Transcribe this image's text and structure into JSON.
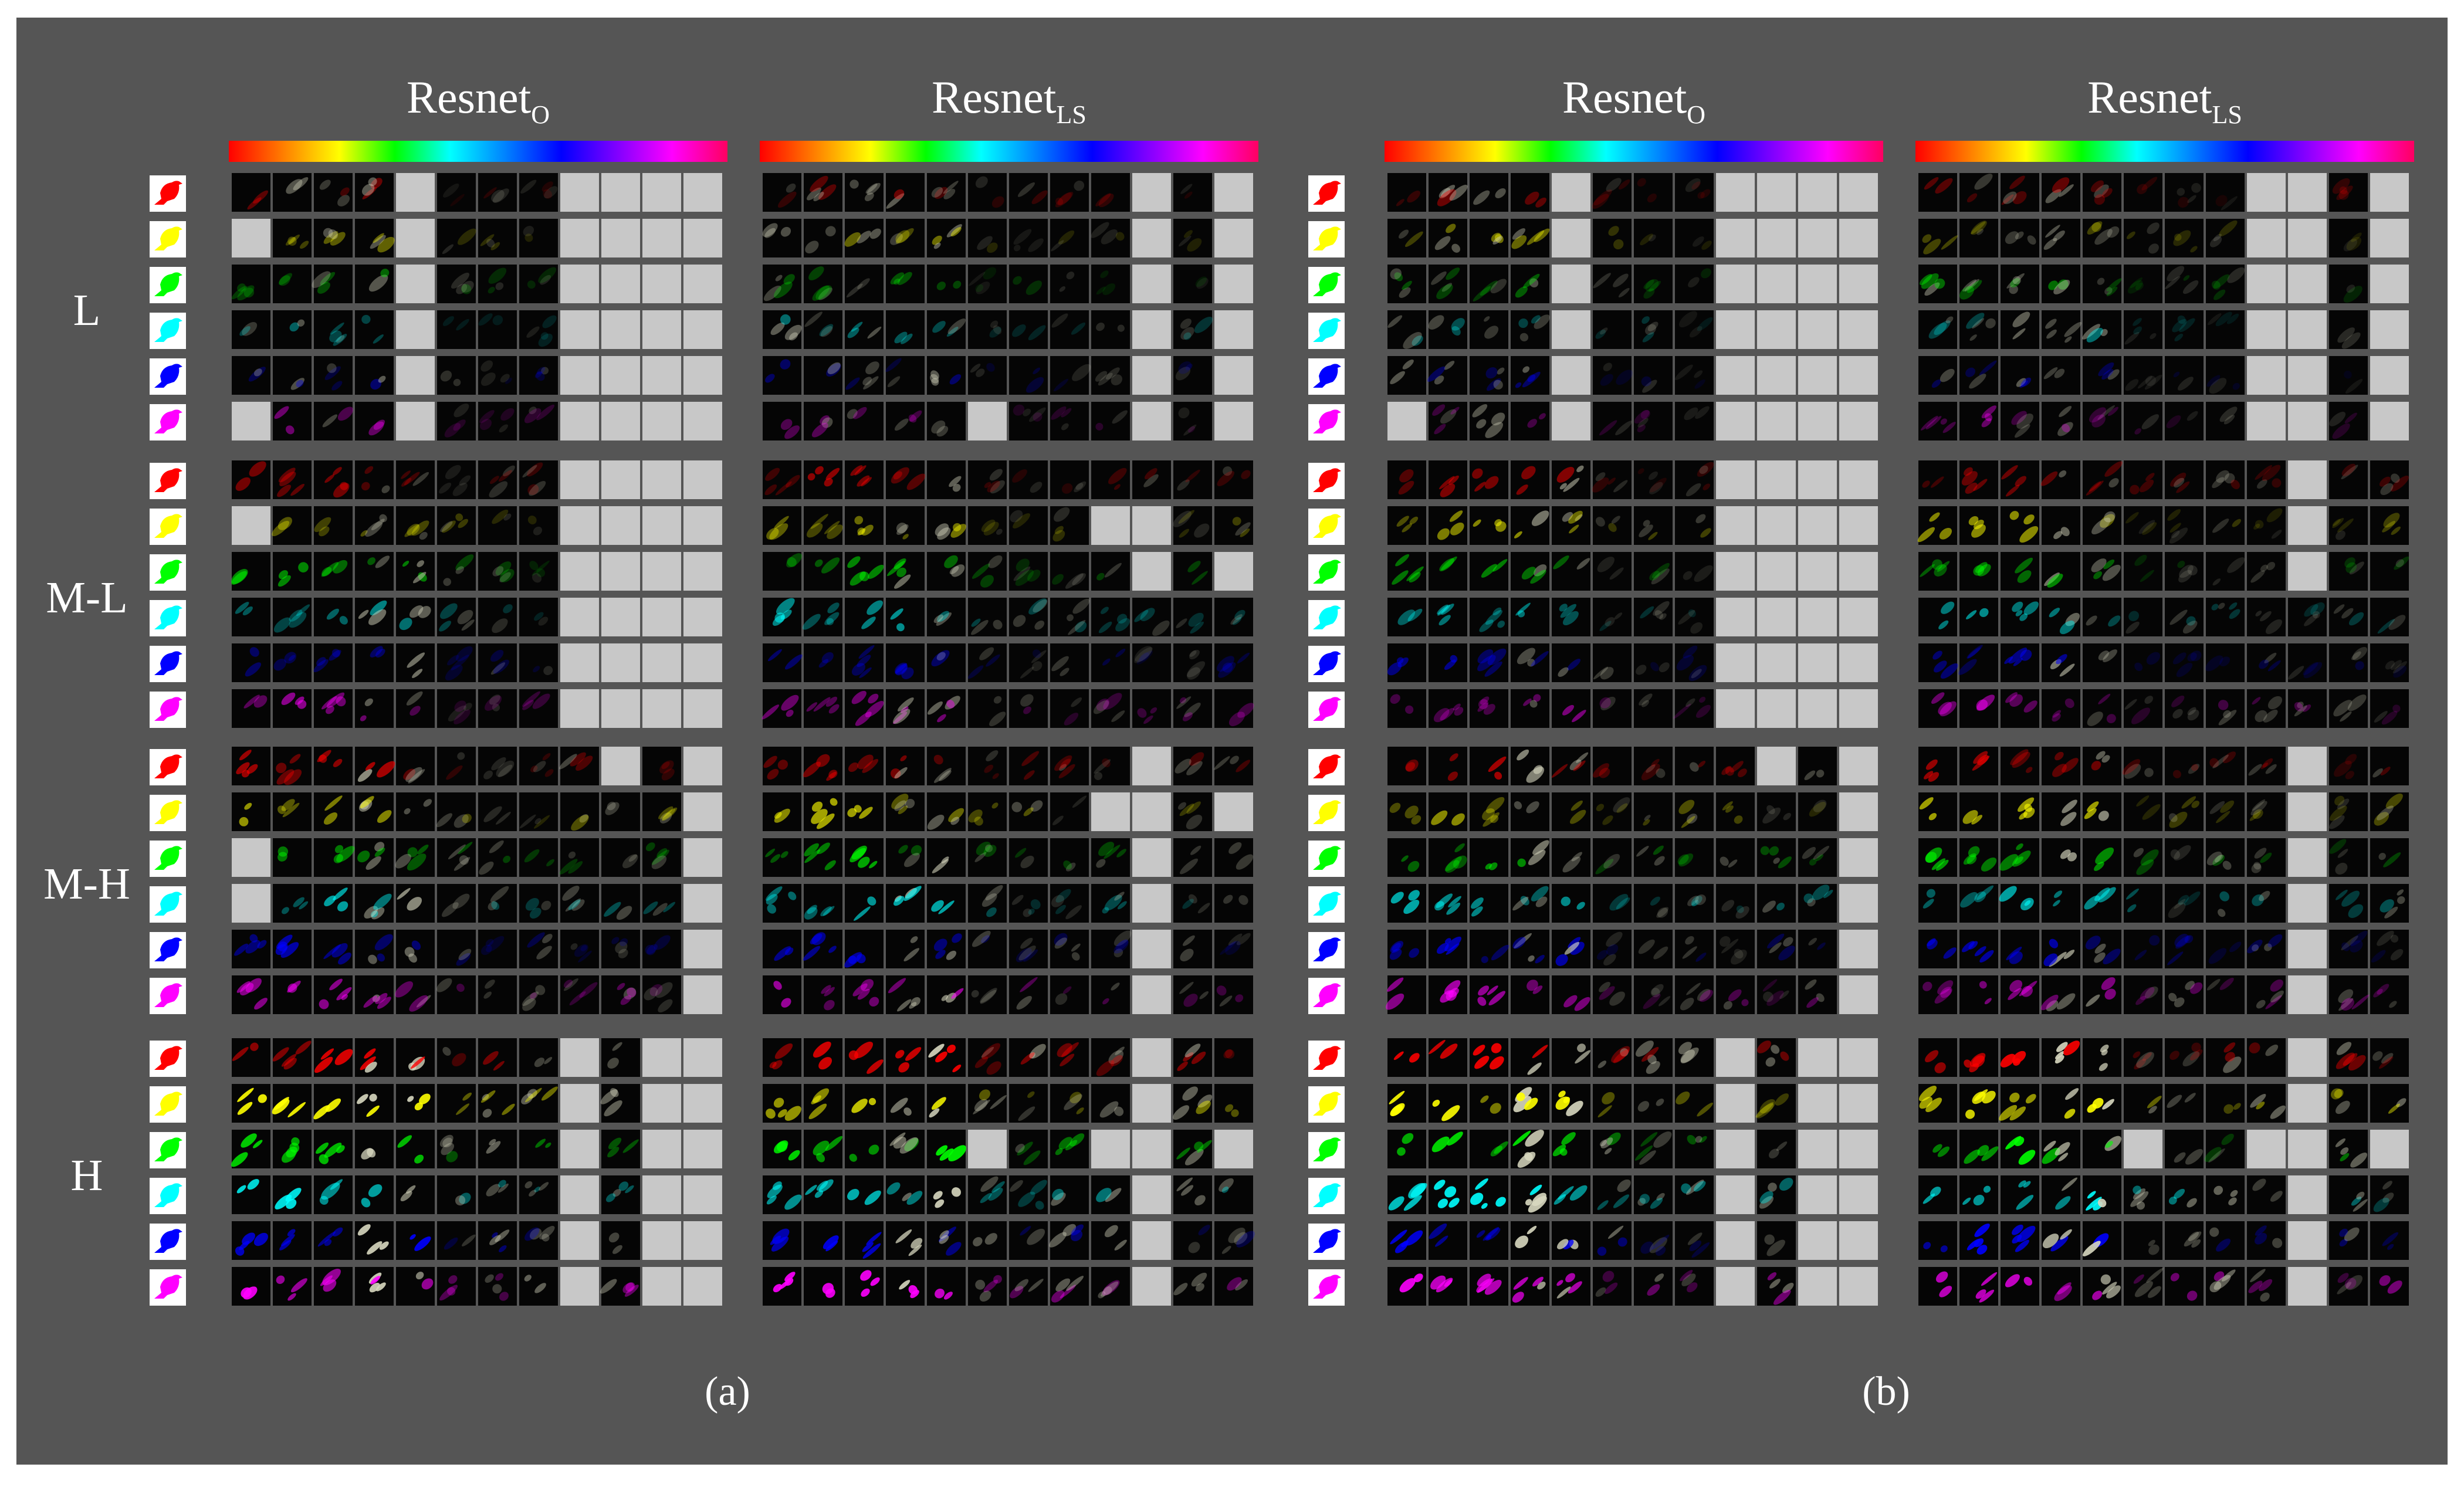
{
  "figure": {
    "background": "#555555",
    "border": "#ffffff"
  },
  "panels": [
    {
      "id": "a",
      "caption": "(a)",
      "models": [
        {
          "base": "Resnet",
          "sub": "O"
        },
        {
          "base": "Resnet",
          "sub": "LS"
        }
      ]
    },
    {
      "id": "b",
      "caption": "(b)",
      "models": [
        {
          "base": "Resnet",
          "sub": "O"
        },
        {
          "base": "Resnet",
          "sub": "LS"
        }
      ]
    }
  ],
  "groups": [
    "L",
    "M-L",
    "M-H",
    "H"
  ],
  "bird_colors": [
    "#ff0000",
    "#ffff00",
    "#00ff00",
    "#00ffff",
    "#0000ff",
    "#ff00ff"
  ],
  "bird_icon": "bird-silhouette-icon",
  "hue_bar_colors": [
    "#ff0000",
    "#ff8000",
    "#ffff00",
    "#00ff00",
    "#00ffff",
    "#0080ff",
    "#0000ff",
    "#8000ff",
    "#ff00ff",
    "#ff0060"
  ],
  "cells_per_row": 12,
  "inactive_cell_color": "#c8c8c8",
  "inactive_columns": {
    "a": {
      "Resnet_O": {
        "L": [
          [
            4,
            8,
            9,
            10,
            11
          ],
          [
            0,
            4,
            8,
            9,
            10,
            11
          ],
          [
            4,
            8,
            9,
            10,
            11
          ],
          [
            4,
            8,
            9,
            10,
            11
          ],
          [
            4,
            8,
            9,
            10,
            11
          ],
          [
            0,
            4,
            8,
            9,
            10,
            11
          ]
        ],
        "M-L": [
          [
            8,
            9,
            10,
            11
          ],
          [
            0,
            8,
            9,
            10,
            11
          ],
          [
            8,
            9,
            10,
            11
          ],
          [
            8,
            9,
            10,
            11
          ],
          [
            8,
            9,
            10,
            11
          ],
          [
            8,
            9,
            10,
            11
          ]
        ],
        "M-H": [
          [
            9,
            11
          ],
          [
            11
          ],
          [
            0,
            11
          ],
          [
            0,
            11
          ],
          [
            11
          ],
          [
            11
          ]
        ],
        "H": [
          [
            8,
            10,
            11
          ],
          [
            8,
            10,
            11
          ],
          [
            8,
            10,
            11
          ],
          [
            8,
            10,
            11
          ],
          [
            8,
            10,
            11
          ],
          [
            8,
            10,
            11
          ]
        ]
      },
      "Resnet_LS": {
        "L": [
          [
            9,
            11
          ],
          [
            9,
            11
          ],
          [
            9,
            11
          ],
          [
            9,
            11
          ],
          [
            9,
            11
          ],
          [
            5,
            9,
            11
          ]
        ],
        "M-L": [
          [],
          [
            8,
            9
          ],
          [
            9,
            11
          ],
          [],
          [],
          []
        ],
        "M-H": [
          [
            9
          ],
          [
            8,
            9,
            11
          ],
          [
            9
          ],
          [
            9
          ],
          [
            9
          ],
          [
            9
          ]
        ],
        "H": [
          [
            9
          ],
          [
            9
          ],
          [
            5,
            8,
            9,
            11
          ],
          [
            9
          ],
          [
            9
          ],
          [
            9
          ]
        ]
      }
    },
    "b": {
      "Resnet_O": {
        "L": [
          [
            4,
            8,
            9,
            10,
            11
          ],
          [
            4,
            8,
            9,
            10,
            11
          ],
          [
            4,
            8,
            9,
            10,
            11
          ],
          [
            4,
            8,
            9,
            10,
            11
          ],
          [
            4,
            8,
            9,
            10,
            11
          ],
          [
            0,
            4,
            8,
            9,
            10,
            11
          ]
        ],
        "M-L": [
          [
            8,
            9,
            10,
            11
          ],
          [
            8,
            9,
            10,
            11
          ],
          [
            8,
            9,
            10,
            11
          ],
          [
            8,
            9,
            10,
            11
          ],
          [
            8,
            9,
            10,
            11
          ],
          [
            8,
            9,
            10,
            11
          ]
        ],
        "M-H": [
          [
            9,
            11
          ],
          [
            11
          ],
          [
            11
          ],
          [
            11
          ],
          [
            11
          ],
          [
            11
          ]
        ],
        "H": [
          [
            8,
            10,
            11
          ],
          [
            8,
            10,
            11
          ],
          [
            8,
            10,
            11
          ],
          [
            8,
            10,
            11
          ],
          [
            8,
            10,
            11
          ],
          [
            8,
            10,
            11
          ]
        ]
      },
      "Resnet_LS": {
        "L": [
          [
            8,
            9,
            11
          ],
          [
            8,
            9,
            11
          ],
          [
            8,
            9,
            11
          ],
          [
            8,
            9,
            11
          ],
          [
            8,
            9,
            11
          ],
          [
            8,
            9,
            11
          ]
        ],
        "M-L": [
          [
            9
          ],
          [
            9
          ],
          [
            9
          ],
          [],
          [],
          []
        ],
        "M-H": [
          [
            9
          ],
          [
            9
          ],
          [
            9
          ],
          [
            9
          ],
          [
            9
          ],
          [
            9
          ]
        ],
        "H": [
          [
            9
          ],
          [
            9
          ],
          [
            5,
            8,
            9,
            11
          ],
          [
            9
          ],
          [
            9
          ],
          [
            9
          ]
        ]
      }
    }
  }
}
